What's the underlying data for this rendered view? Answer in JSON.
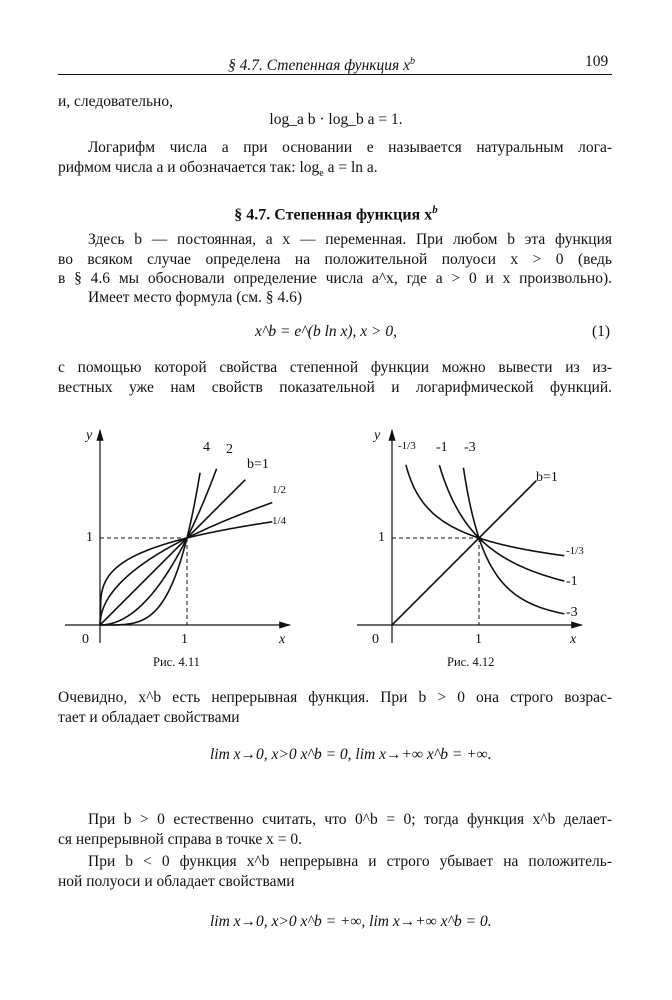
{
  "header": {
    "running_title": "§ 4.7. Степенная функция x",
    "running_title_sup": "b",
    "page_number": "109"
  },
  "lines": [
    "и, следовательно,",
    "log",
    "Логарифм числа a при основании e называется натуральным лога-",
    "рифмом числа a и обозначается так: log",
    "§ 4.7. Степенная функция x",
    "Здесь b — постоянная, а x — переменная. При любом b эта функция",
    "во всяком случае определена на положительной полуоси x > 0 (ведь",
    "в § 4.6 мы обосновали определение числа a^x, где a > 0 и x произвольно).",
    "Имеет место формула (см. § 4.6)",
    "с помощью которой свойства степенной функции можно вывести из из-",
    "вестных уже нам свойств показательной и логарифмической функций."
  ],
  "formulas": {
    "log_identity": "log_a b · log_b a = 1.",
    "ln_def": "log_e a = ln a.",
    "formula1": "x^b = e^(b ln x),   x > 0,",
    "formula1_number": "(1)",
    "lim_pos": "lim x→0, x>0  x^b = 0,   lim x→+∞  x^b = +∞.",
    "lim_neg": "lim x→0, x>0  x^b = +∞,   lim x→+∞  x^b = 0."
  },
  "after": [
    "Очевидно, x^b есть непрерывная функция. При b > 0 она строго возрас-",
    "тает и обладает свойствами",
    "При b > 0 естественно считать, что 0^b = 0; тогда функция x^b делает-",
    "ся непрерывной справа в точке x = 0.",
    "При b < 0 функция x^b непрерывна и строго убывает на положитель-",
    "ной полуоси и обладает свойствами"
  ],
  "chart_data": [
    {
      "type": "line",
      "caption": "Рис. 4.11",
      "xlabel": "x",
      "ylabel": "y",
      "ticks": {
        "x": [
          "0",
          "1"
        ],
        "y": [
          "1"
        ]
      },
      "series": [
        {
          "label": "4",
          "b": 4
        },
        {
          "label": "2",
          "b": 2
        },
        {
          "label": "b=1",
          "b": 1
        },
        {
          "label": "1/2",
          "b": 0.5
        },
        {
          "label": "1/4",
          "b": 0.25
        }
      ]
    },
    {
      "type": "line",
      "caption": "Рис. 4.12",
      "xlabel": "x",
      "ylabel": "y",
      "ticks": {
        "x": [
          "0",
          "1"
        ],
        "y": [
          "1"
        ]
      },
      "series": [
        {
          "label": "-1/3",
          "b": -0.333
        },
        {
          "label": "-1",
          "b": -1
        },
        {
          "label": "-3",
          "b": -3
        },
        {
          "label": "b=1",
          "b": 1
        }
      ]
    }
  ]
}
